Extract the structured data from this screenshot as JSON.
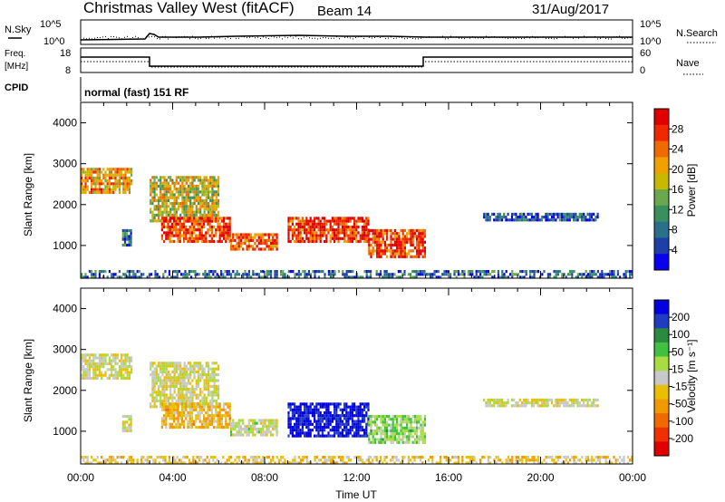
{
  "header": {
    "title": "Christmas Valley West (fitACF)",
    "beam": "Beam 14",
    "date": "31/Aug/2017"
  },
  "nsky_panel": {
    "left_label": "N.Sky",
    "right_label": "N.Search",
    "ticks_left": [
      "10^5",
      "10^0"
    ],
    "ticks_right": [
      "10^5",
      "10^0"
    ]
  },
  "freq_panel": {
    "left_label_line1": "Freq.",
    "left_label_line2": "[MHz]",
    "right_label": "Nave",
    "ticks_left": [
      "18",
      "8"
    ],
    "ticks_right": [
      "60",
      "0"
    ]
  },
  "cpid": {
    "label": "CPID",
    "program": "normal (fast) 151 RF"
  },
  "colors": {
    "power_scale": [
      "#0a00f0",
      "#1f3fa8",
      "#2b6f8a",
      "#3a8f5f",
      "#6aa84f",
      "#c8b800",
      "#f0a000",
      "#f06a00",
      "#f02800",
      "#e00000"
    ],
    "velocity_scale": [
      "#e00000",
      "#f03000",
      "#f06a00",
      "#f09a00",
      "#e8c000",
      "#c8c8c8",
      "#a8dc40",
      "#40c040",
      "#2a8a40",
      "#203cc0",
      "#0000e0"
    ]
  },
  "chart_data": [
    {
      "type": "heatmap",
      "name": "power",
      "xlabel": "",
      "ylabel": "Slant Range [km]",
      "yticks": [
        "1000",
        "2000",
        "3000",
        "4000"
      ],
      "ylim": [
        200,
        4500
      ],
      "xlim": [
        0,
        24
      ],
      "colorbar_label": "Power [dB]",
      "colorbar_ticks": [
        "4",
        "8",
        "12",
        "16",
        "20",
        "24",
        "28"
      ],
      "colorbar_range": [
        0,
        32
      ],
      "features": [
        {
          "t": [
            0.0,
            2.2
          ],
          "range": [
            2300,
            2900
          ],
          "value": 22
        },
        {
          "t": [
            1.8,
            2.2
          ],
          "range": [
            1000,
            1400
          ],
          "value": 8
        },
        {
          "t": [
            3.0,
            6.0
          ],
          "range": [
            1600,
            2700
          ],
          "value": 18
        },
        {
          "t": [
            3.5,
            6.5
          ],
          "range": [
            1100,
            1700
          ],
          "value": 27
        },
        {
          "t": [
            6.5,
            8.5
          ],
          "range": [
            900,
            1300
          ],
          "value": 25
        },
        {
          "t": [
            9.0,
            12.5
          ],
          "range": [
            1100,
            1700
          ],
          "value": 28
        },
        {
          "t": [
            12.5,
            15.0
          ],
          "range": [
            700,
            1400
          ],
          "value": 27
        },
        {
          "t": [
            17.5,
            22.5
          ],
          "range": [
            1600,
            1800
          ],
          "value": 6
        },
        {
          "t": [
            0.0,
            24.0
          ],
          "range": [
            200,
            400
          ],
          "value": 8
        }
      ]
    },
    {
      "type": "heatmap",
      "name": "velocity",
      "xlabel": "Time UT",
      "ylabel": "Slant Range [km]",
      "xticks": [
        "00:00",
        "04:00",
        "08:00",
        "12:00",
        "16:00",
        "20:00",
        "00:00"
      ],
      "yticks": [
        "1000",
        "2000",
        "3000",
        "4000"
      ],
      "ylim": [
        200,
        4500
      ],
      "xlim": [
        0,
        24
      ],
      "colorbar_label": "Velocity [m s⁻¹]",
      "colorbar_ticks": [
        "200",
        "100",
        "50",
        "15",
        "-15",
        "-50",
        "-100",
        "-200"
      ],
      "colorbar_range": [
        -250,
        250
      ],
      "features": [
        {
          "t": [
            0.0,
            2.2
          ],
          "range": [
            2300,
            2900
          ],
          "value": 0
        },
        {
          "t": [
            1.8,
            2.2
          ],
          "range": [
            1000,
            1400
          ],
          "value": 0
        },
        {
          "t": [
            3.0,
            6.0
          ],
          "range": [
            1600,
            2700
          ],
          "value": 0
        },
        {
          "t": [
            3.5,
            6.5
          ],
          "range": [
            1100,
            1700
          ],
          "value": -60
        },
        {
          "t": [
            6.5,
            8.5
          ],
          "range": [
            900,
            1300
          ],
          "value": 20
        },
        {
          "t": [
            9.0,
            12.5
          ],
          "range": [
            900,
            1700
          ],
          "value": 220
        },
        {
          "t": [
            12.5,
            15.0
          ],
          "range": [
            700,
            1400
          ],
          "value": 60
        },
        {
          "t": [
            17.5,
            22.5
          ],
          "range": [
            1600,
            1800
          ],
          "value": 0
        },
        {
          "t": [
            0.0,
            24.0
          ],
          "range": [
            200,
            400
          ],
          "value": -40
        }
      ]
    }
  ]
}
